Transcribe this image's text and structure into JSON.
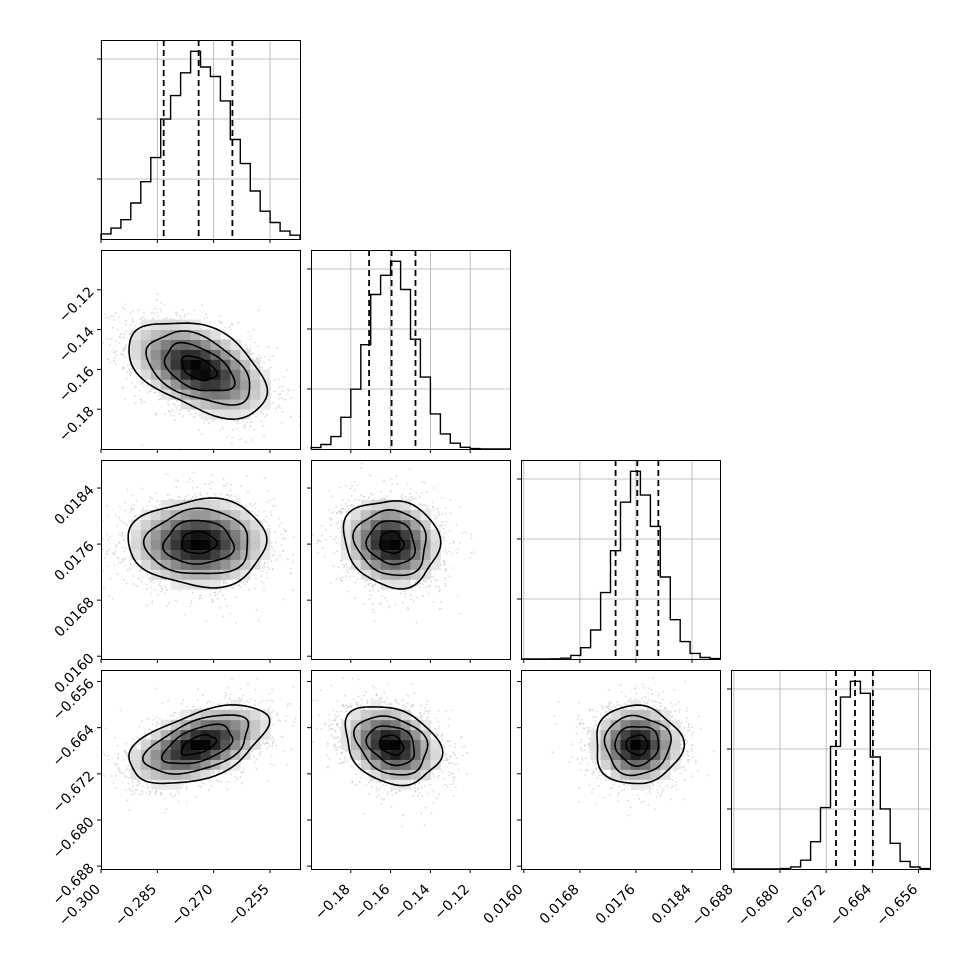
{
  "chart_data": {
    "type": "corner",
    "parameters": [
      {
        "index": 0,
        "range": [
          -0.3,
          -0.247
        ],
        "mean": -0.274,
        "sd": 0.0092,
        "quantiles": [
          -0.2833,
          -0.274,
          -0.265
        ],
        "xticks": [
          -0.3,
          -0.285,
          -0.27,
          -0.255
        ],
        "xtick_labels": [
          "−0.300",
          "−0.285",
          "−0.270",
          "−0.255"
        ]
      },
      {
        "index": 1,
        "range": [
          -0.2,
          -0.1
        ],
        "mean": -0.1595,
        "sd": 0.012,
        "quantiles": [
          -0.1708,
          -0.1595,
          -0.1475
        ],
        "xticks": [
          -0.18,
          -0.16,
          -0.14,
          -0.12
        ],
        "xtick_labels": [
          "−0.18",
          "−0.16",
          "−0.14",
          "−0.12"
        ],
        "yticks": [
          -0.18,
          -0.16,
          -0.14,
          -0.12
        ],
        "ytick_labels": [
          "−0.18",
          "−0.16",
          "−0.14",
          "−0.12"
        ]
      },
      {
        "index": 2,
        "range": [
          0.01596,
          0.0188
        ],
        "mean": 0.01762,
        "sd": 0.00031,
        "quantiles": [
          0.01731,
          0.01762,
          0.01792
        ],
        "xticks": [
          0.016,
          0.0168,
          0.0176,
          0.0184
        ],
        "xtick_labels": [
          "0.0160",
          "0.0168",
          "0.0176",
          "0.0184"
        ],
        "yticks": [
          0.016,
          0.0168,
          0.0176,
          0.0184
        ],
        "ytick_labels": [
          "0.0160",
          "0.0168",
          "0.0176",
          "0.0184"
        ]
      },
      {
        "index": 3,
        "range": [
          -0.6885,
          -0.654
        ],
        "mean": -0.667,
        "sd": 0.0034,
        "quantiles": [
          -0.6703,
          -0.667,
          -0.6639
        ],
        "xticks": [
          -0.688,
          -0.68,
          -0.672,
          -0.664,
          -0.656
        ],
        "xtick_labels": [
          "−0.688",
          "−0.680",
          "−0.672",
          "−0.664",
          "−0.656"
        ],
        "yticks": [
          -0.688,
          -0.68,
          -0.672,
          -0.664,
          -0.656
        ],
        "ytick_labels": [
          "−0.688",
          "−0.680",
          "−0.672",
          "−0.664",
          "−0.656"
        ]
      }
    ],
    "correlations": [
      {
        "pair": [
          0,
          1
        ],
        "rho": -0.45
      },
      {
        "pair": [
          0,
          2
        ],
        "rho": 0.0
      },
      {
        "pair": [
          1,
          2
        ],
        "rho": -0.1
      },
      {
        "pair": [
          0,
          3
        ],
        "rho": 0.5
      },
      {
        "pair": [
          1,
          3
        ],
        "rho": -0.25
      },
      {
        "pair": [
          2,
          3
        ],
        "rho": 0.0
      }
    ],
    "histogram_bins": 20,
    "grid": true,
    "contour_levels": 4,
    "colors": {
      "line": "#000000",
      "scatter": "#bdbdbd",
      "grid": "#b0b0b0"
    }
  }
}
